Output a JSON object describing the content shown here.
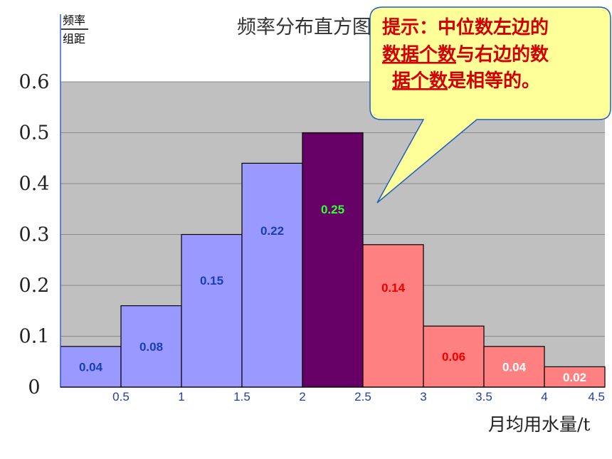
{
  "chart_data": {
    "type": "bar",
    "title": "频率分布直方图",
    "ylabel_line1": "频率",
    "ylabel_line2": "组距",
    "xlabel": "月均用水量/t",
    "ylim": [
      0,
      0.6
    ],
    "xlim": [
      0,
      4.5
    ],
    "grid": true,
    "yticks": [
      "0",
      "0.1",
      "0.2",
      "0.3",
      "0.4",
      "0.5",
      "0.6"
    ],
    "xticks": [
      "0.5",
      "1",
      "1.5",
      "2",
      "2.5",
      "3",
      "3.5",
      "4",
      "4.5"
    ],
    "bins": [
      {
        "x0": 0.0,
        "x1": 0.5,
        "height": 0.08,
        "label": "0.04",
        "fill": "#9999ff",
        "label_color": "#1a3fb0"
      },
      {
        "x0": 0.5,
        "x1": 1.0,
        "height": 0.16,
        "label": "0.08",
        "fill": "#9999ff",
        "label_color": "#1a3fb0"
      },
      {
        "x0": 1.0,
        "x1": 1.5,
        "height": 0.3,
        "label": "0.15",
        "fill": "#9999ff",
        "label_color": "#1a3fb0"
      },
      {
        "x0": 1.5,
        "x1": 2.0,
        "height": 0.44,
        "label": "0.22",
        "fill": "#9999ff",
        "label_color": "#1a3fb0"
      },
      {
        "x0": 2.0,
        "x1": 2.5,
        "height": 0.5,
        "label": "0.25",
        "fill": "#660066",
        "label_color": "#33ff33"
      },
      {
        "x0": 2.5,
        "x1": 3.0,
        "height": 0.28,
        "label": "0.14",
        "fill": "#ff8080",
        "label_color": "#ee0000"
      },
      {
        "x0": 3.0,
        "x1": 3.5,
        "height": 0.12,
        "label": "0.06",
        "fill": "#ff8080",
        "label_color": "#ee0000"
      },
      {
        "x0": 3.5,
        "x1": 4.0,
        "height": 0.08,
        "label": "0.04",
        "fill": "#ff8080",
        "label_color": "#ffffff"
      },
      {
        "x0": 4.0,
        "x1": 4.5,
        "height": 0.04,
        "label": "0.02",
        "fill": "#ff8080",
        "label_color": "#ffffff"
      }
    ],
    "plot_bg": "#c0c0c0"
  },
  "callout": {
    "line1": "提示：中位数左边的",
    "line2_part1": "数据个数",
    "line2_part2": "与右边的数",
    "line3_part1": "据个数",
    "line3_part2": "是相等的。",
    "fill": "#ffff99",
    "border": "#1f5fbf",
    "text_color": "#d40000"
  }
}
